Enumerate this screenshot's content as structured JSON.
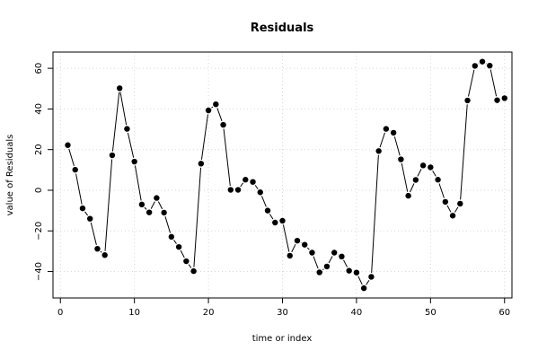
{
  "chart_data": {
    "type": "line",
    "title": "Residuals",
    "xlabel": "time or index",
    "ylabel": "value of Residuals",
    "xlim": [
      -1,
      61
    ],
    "ylim": [
      -53,
      68
    ],
    "x_ticks": [
      0,
      10,
      20,
      30,
      40,
      50,
      60
    ],
    "y_ticks": [
      -40,
      -20,
      0,
      20,
      40,
      60
    ],
    "x_tick_labels": [
      "0",
      "10",
      "20",
      "30",
      "40",
      "50",
      "60"
    ],
    "y_tick_labels": [
      "−40",
      "−20",
      "0",
      "20",
      "40",
      "60"
    ],
    "grid": true,
    "markers": true,
    "x": [
      1,
      2,
      3,
      4,
      5,
      6,
      7,
      8,
      9,
      10,
      11,
      12,
      13,
      14,
      15,
      16,
      17,
      18,
      19,
      20,
      21,
      22,
      23,
      24,
      25,
      26,
      27,
      28,
      29,
      30,
      31,
      32,
      33,
      34,
      35,
      36,
      37,
      38,
      39,
      40,
      41,
      42,
      43,
      44,
      45,
      46,
      47,
      48,
      49,
      50,
      51,
      52,
      53,
      54,
      55,
      56,
      57,
      58,
      59,
      60
    ],
    "values": [
      22.2,
      10.1,
      -8.9,
      -14.0,
      -28.8,
      -31.9,
      17.2,
      50.2,
      30.2,
      14.1,
      -7.0,
      -10.9,
      -3.8,
      -11.0,
      -22.9,
      -27.9,
      -34.9,
      -39.8,
      13.1,
      39.3,
      42.3,
      32.2,
      0.2,
      0.2,
      5.2,
      4.1,
      -1.0,
      -10.0,
      -15.9,
      -15.0,
      -32.2,
      -24.8,
      -26.8,
      -30.7,
      -40.4,
      -37.5,
      -30.7,
      -32.6,
      -39.6,
      -40.5,
      -48.2,
      -42.6,
      19.3,
      30.2,
      28.3,
      15.2,
      -2.7,
      5.1,
      12.2,
      11.3,
      5.2,
      -5.7,
      -12.5,
      -6.6,
      44.2,
      61.2,
      63.3,
      61.3,
      44.3,
      45.3
    ]
  }
}
